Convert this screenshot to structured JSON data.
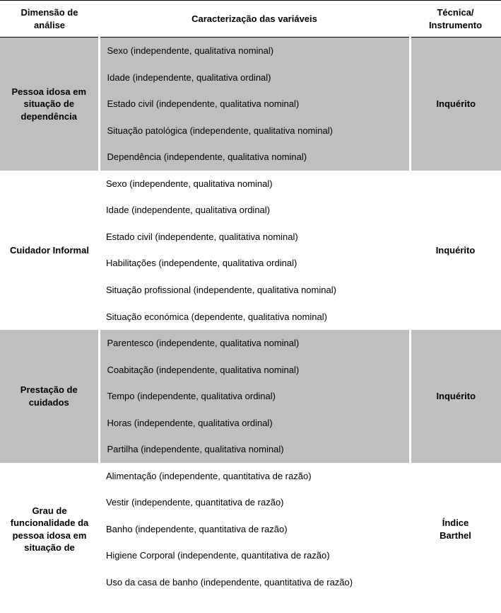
{
  "header": {
    "col1_line1": "Dimensão de",
    "col1_line2": "análise",
    "col2": "Caracterização das variáveis",
    "col3_line1": "Técnica/",
    "col3_line2": "Instrumento"
  },
  "sections": [
    {
      "shaded": true,
      "dimension": "Pessoa idosa em situação de dependência",
      "technique": "Inquérito",
      "vars": [
        {
          "text": "Sexo (independente, qualitativa nominal)"
        },
        {
          "text": "Idade (independente, qualitativa ordinal)"
        },
        {
          "text": "Estado civil (independente, qualitativa nominal)"
        },
        {
          "text": "Situação patológica (independente, qualitativa nominal)"
        },
        {
          "text": "Dependência (independente, qualitativa nominal)"
        }
      ]
    },
    {
      "shaded": false,
      "dimension": "Cuidador Informal",
      "technique": "Inquérito",
      "vars": [
        {
          "text": "Sexo (independente, qualitativa nominal)"
        },
        {
          "text": "Idade (independente, qualitativa ordinal)"
        },
        {
          "text": "Estado civil (independente, qualitativa nominal)"
        },
        {
          "text": "Habilitações (independente, qualitativa ordinal)"
        },
        {
          "text": "Situação profissional (independente, qualitativa nominal)",
          "justify": true
        },
        {
          "text": "Situação económica (dependente, qualitativa nominal)"
        }
      ]
    },
    {
      "shaded": true,
      "dimension": "Prestação de cuidados",
      "technique": "Inquérito",
      "vars": [
        {
          "text": "Parentesco (independente, qualitativa nominal)"
        },
        {
          "text": "Coabitação (independente, qualitativa nominal)"
        },
        {
          "text": "Tempo (independente, qualitativa ordinal)"
        },
        {
          "text": "Horas (independente, qualitativa ordinal)"
        },
        {
          "text": "Partilha (independente, qualitativa nominal)"
        }
      ]
    },
    {
      "shaded": false,
      "dimension": "Grau de funcionalidade da pessoa idosa em situação de",
      "technique": "Índice Barthel",
      "vars": [
        {
          "text": "Alimentação (independente, quantitativa de razão)"
        },
        {
          "text": "Vestir (independente, quantitativa de razão)"
        },
        {
          "text": "Banho (independente, quantitativa de razão)"
        },
        {
          "text": "Higiene Corporal (independente, quantitativa de razão)"
        },
        {
          "text": "Uso da casa de banho (independente, quantitativa de razão)",
          "justify": true
        }
      ]
    }
  ]
}
